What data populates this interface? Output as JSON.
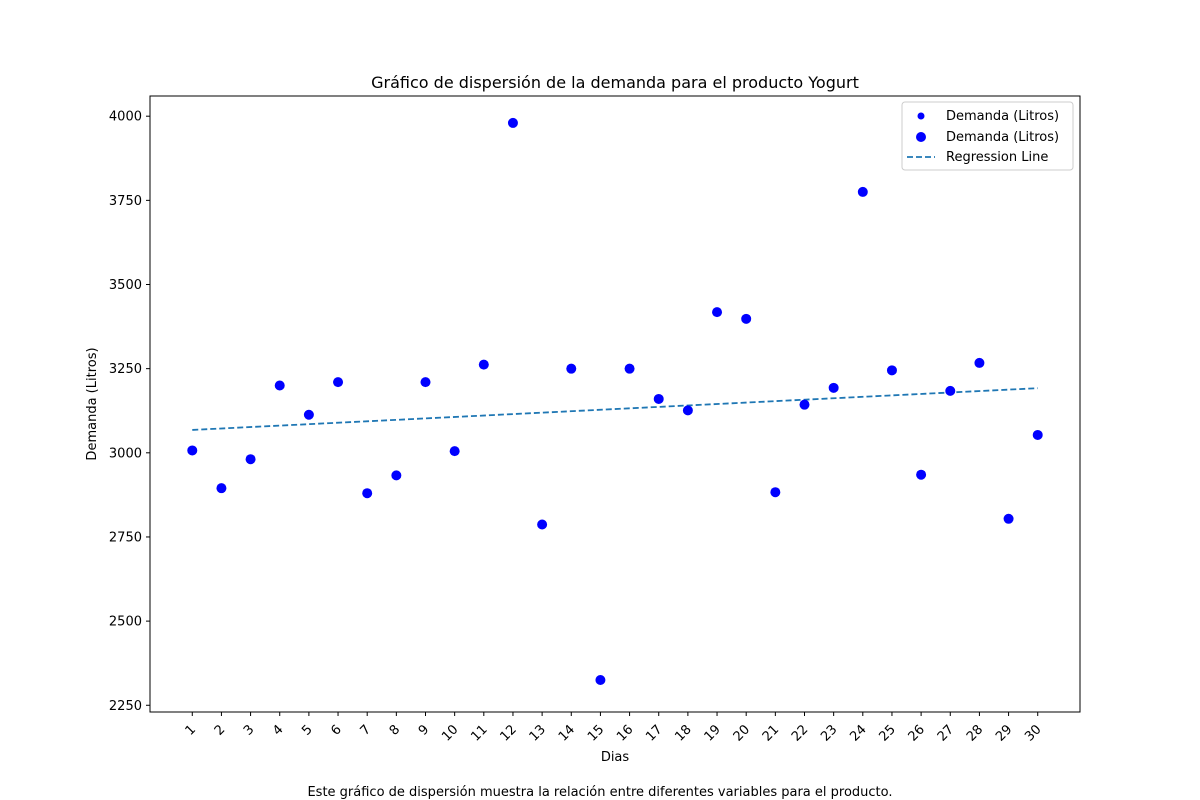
{
  "chart_data": {
    "type": "scatter",
    "title": "Gráfico de dispersión de la demanda para el producto Yogurt",
    "xlabel": "Dias",
    "ylabel": "Demanda (Litros)",
    "caption": "Este gráfico de dispersión muestra la relación entre diferentes variables para el producto.",
    "x": [
      1,
      2,
      3,
      4,
      5,
      6,
      7,
      8,
      9,
      10,
      11,
      12,
      13,
      14,
      15,
      16,
      17,
      18,
      19,
      20,
      21,
      22,
      23,
      24,
      25,
      26,
      27,
      28,
      29,
      30
    ],
    "x_tick_labels": [
      "1",
      "2",
      "3",
      "4",
      "5",
      "6",
      "7",
      "8",
      "9",
      "10",
      "11",
      "12",
      "13",
      "14",
      "15",
      "16",
      "17",
      "18",
      "19",
      "20",
      "21",
      "22",
      "23",
      "24",
      "25",
      "26",
      "27",
      "28",
      "29",
      "30"
    ],
    "series": [
      {
        "name": "Demanda (Litros)",
        "values": [
          3007,
          2895,
          2981,
          3200,
          3113,
          3210,
          2880,
          2933,
          3210,
          3005,
          3262,
          3980,
          2787,
          3250,
          2325,
          3250,
          3160,
          3126,
          3418,
          3398,
          2883,
          3143,
          3193,
          3775,
          3245,
          2935,
          3184,
          3267,
          2804,
          3053
        ]
      }
    ],
    "regression": {
      "name": "Regression Line",
      "start": [
        1,
        3068
      ],
      "end": [
        30,
        3192
      ]
    },
    "legend": {
      "position": "top-right",
      "entries": [
        "Demanda (Litros)",
        "Demanda (Litros)",
        "Regression Line"
      ]
    },
    "xlim": [
      -0.45,
      31.45
    ],
    "ylim": [
      2230,
      4060
    ],
    "y_ticks": [
      2250,
      2500,
      2750,
      3000,
      3250,
      3500,
      3750,
      4000
    ],
    "colors": {
      "points": "#0000ff",
      "regression": "#1f77b4"
    }
  }
}
